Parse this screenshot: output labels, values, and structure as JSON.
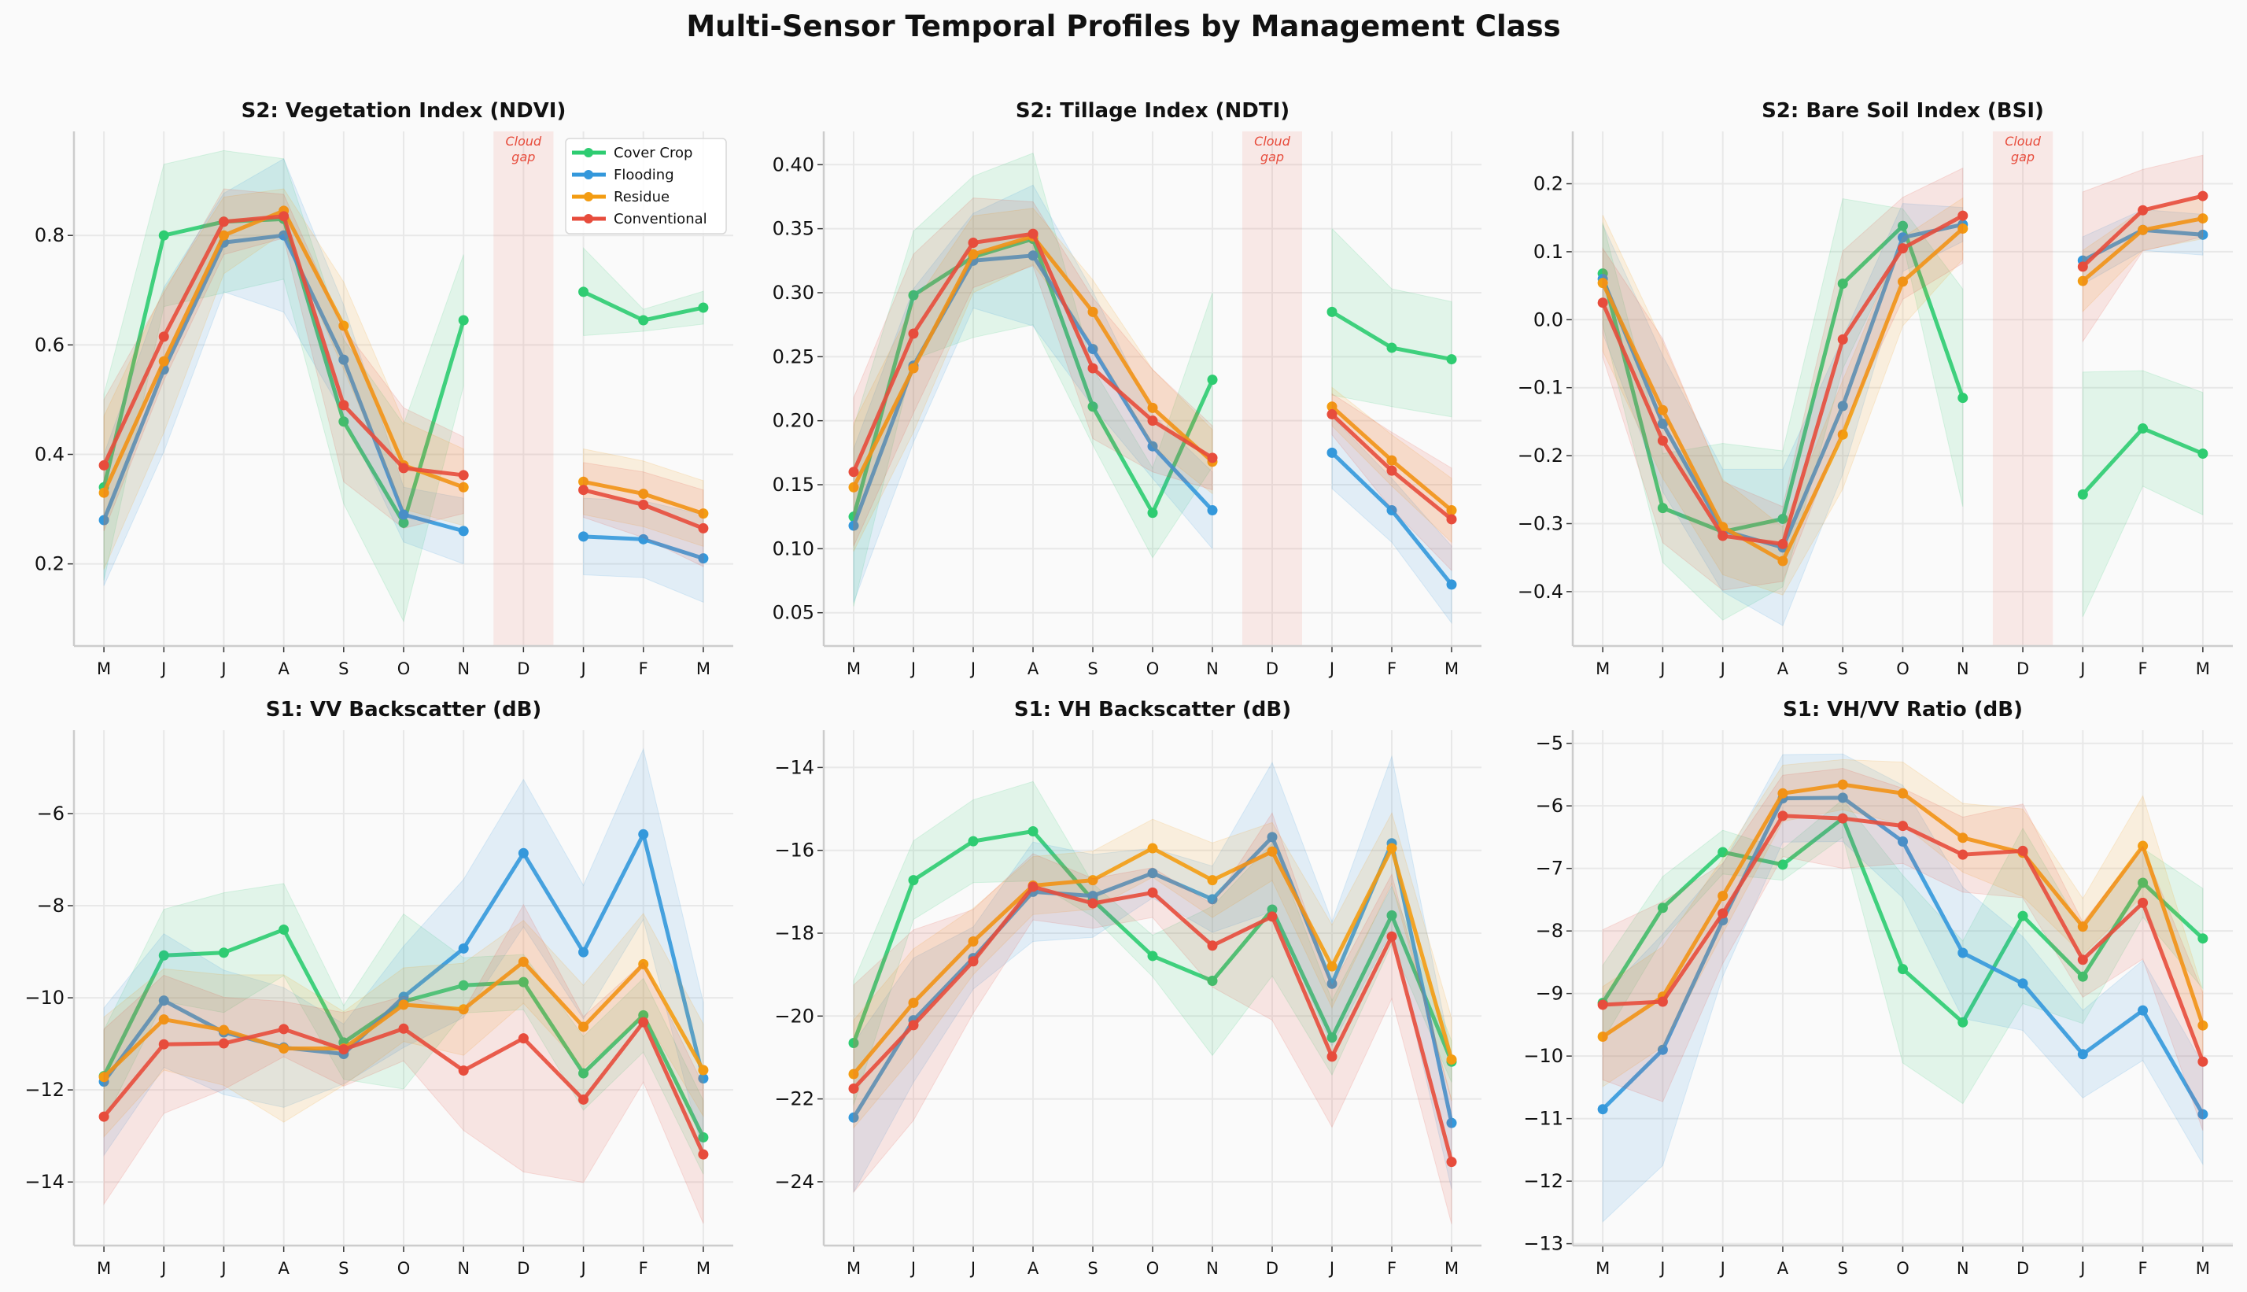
{
  "figure": {
    "title": "Multi-Sensor Temporal Profiles by Management Class",
    "background": "#fafafa",
    "gap_label": [
      "Cloud",
      "gap"
    ]
  },
  "legend": {
    "placement": "upper-right of first panel",
    "entries": [
      "Cover Crop",
      "Flooding",
      "Residue",
      "Conventional"
    ]
  },
  "chart_data": [
    {
      "type": "line",
      "title": "S2: Vegetation Index (NDVI)",
      "categories": [
        "M",
        "J",
        "J",
        "A",
        "S",
        "O",
        "N",
        "D",
        "J",
        "F",
        "M"
      ],
      "ylim": [
        0.05,
        0.99
      ],
      "grid": true,
      "cloud_gap": "D",
      "yticks": [
        0.2,
        0.4,
        0.6,
        0.8
      ],
      "ytick_labels": [
        "0.2",
        "0.4",
        "0.6",
        "0.8"
      ],
      "series": [
        {
          "name": "Cover Crop",
          "color": "#2ecc71",
          "values": [
            0.34,
            0.8,
            0.825,
            0.83,
            0.46,
            0.275,
            0.645,
            null,
            0.697,
            0.645,
            0.668
          ],
          "band": [
            0.17,
            0.13,
            0.13,
            0.11,
            0.15,
            0.18,
            0.12,
            null,
            0.08,
            0.02,
            0.03
          ]
        },
        {
          "name": "Flooding",
          "color": "#3498db",
          "values": [
            0.28,
            0.555,
            0.787,
            0.8,
            0.573,
            0.29,
            0.26,
            null,
            0.25,
            0.245,
            0.21
          ],
          "band": [
            0.12,
            0.15,
            0.09,
            0.14,
            0.1,
            0.05,
            0.06,
            null,
            0.07,
            0.07,
            0.08
          ]
        },
        {
          "name": "Residue",
          "color": "#f39c12",
          "values": [
            0.33,
            0.57,
            0.8,
            0.845,
            0.635,
            0.38,
            0.34,
            null,
            0.35,
            0.328,
            0.292
          ],
          "band": [
            0.14,
            0.13,
            0.07,
            0.04,
            0.08,
            0.08,
            0.07,
            null,
            0.06,
            0.06,
            0.06
          ]
        },
        {
          "name": "Conventional",
          "color": "#e74c3c",
          "values": [
            0.38,
            0.615,
            0.825,
            0.835,
            0.49,
            0.375,
            0.362,
            null,
            0.335,
            0.308,
            0.265
          ],
          "band": [
            0.12,
            0.08,
            0.06,
            0.04,
            0.14,
            0.11,
            0.07,
            null,
            0.05,
            0.06,
            0.07
          ]
        }
      ]
    },
    {
      "type": "line",
      "title": "S2: Tillage Index (NDTI)",
      "categories": [
        "M",
        "J",
        "J",
        "A",
        "S",
        "O",
        "N",
        "D",
        "J",
        "F",
        "M"
      ],
      "ylim": [
        0.024,
        0.426
      ],
      "grid": true,
      "cloud_gap": "D",
      "yticks": [
        0.05,
        0.1,
        0.15,
        0.2,
        0.25,
        0.3,
        0.35,
        0.4
      ],
      "ytick_labels": [
        "0.05",
        "0.10",
        "0.15",
        "0.20",
        "0.25",
        "0.30",
        "0.35",
        "0.40"
      ],
      "series": [
        {
          "name": "Cover Crop",
          "color": "#2ecc71",
          "values": [
            0.125,
            0.298,
            0.328,
            0.342,
            0.211,
            0.128,
            0.232,
            null,
            0.285,
            0.257,
            0.248
          ],
          "band": [
            0.07,
            0.05,
            0.063,
            0.067,
            0.03,
            0.035,
            0.068,
            null,
            0.065,
            0.046,
            0.045
          ]
        },
        {
          "name": "Flooding",
          "color": "#3498db",
          "values": [
            0.118,
            0.243,
            0.325,
            0.329,
            0.256,
            0.18,
            0.13,
            null,
            0.175,
            0.13,
            0.072
          ],
          "band": [
            0.06,
            0.06,
            0.037,
            0.055,
            0.045,
            0.025,
            0.03,
            null,
            0.028,
            0.025,
            0.03
          ]
        },
        {
          "name": "Residue",
          "color": "#f39c12",
          "values": [
            0.148,
            0.241,
            0.33,
            0.344,
            0.285,
            0.21,
            0.168,
            null,
            0.211,
            0.169,
            0.13
          ],
          "band": [
            0.05,
            0.05,
            0.03,
            0.022,
            0.025,
            0.03,
            0.025,
            null,
            0.015,
            0.02,
            0.025
          ]
        },
        {
          "name": "Conventional",
          "color": "#e74c3c",
          "values": [
            0.16,
            0.268,
            0.339,
            0.346,
            0.241,
            0.2,
            0.171,
            null,
            0.205,
            0.161,
            0.123
          ],
          "band": [
            0.058,
            0.062,
            0.035,
            0.025,
            0.055,
            0.04,
            0.025,
            null,
            0.016,
            0.03,
            0.04
          ]
        }
      ]
    },
    {
      "type": "line",
      "title": "S2: Bare Soil Index (BSI)",
      "categories": [
        "M",
        "J",
        "J",
        "A",
        "S",
        "O",
        "N",
        "D",
        "J",
        "F",
        "M"
      ],
      "ylim": [
        -0.48,
        0.277
      ],
      "grid": true,
      "cloud_gap": "D",
      "yticks": [
        -0.4,
        -0.3,
        -0.2,
        -0.1,
        0.0,
        0.1,
        0.2
      ],
      "ytick_labels": [
        "−0.4",
        "−0.3",
        "−0.2",
        "−0.1",
        "0.0",
        "0.1",
        "0.2"
      ],
      "series": [
        {
          "name": "Cover Crop",
          "color": "#2ecc71",
          "values": [
            0.068,
            -0.277,
            -0.312,
            -0.293,
            0.053,
            0.138,
            -0.115,
            null,
            -0.257,
            -0.16,
            -0.197
          ],
          "band": [
            0.075,
            0.08,
            0.13,
            0.1,
            0.125,
            0.025,
            0.16,
            null,
            0.18,
            0.085,
            0.09
          ]
        },
        {
          "name": "Flooding",
          "color": "#3498db",
          "values": [
            0.06,
            -0.153,
            -0.31,
            -0.335,
            -0.127,
            0.121,
            0.14,
            null,
            0.087,
            0.132,
            0.125
          ],
          "band": [
            0.08,
            0.1,
            0.09,
            0.115,
            0.1,
            0.05,
            0.025,
            null,
            0.035,
            0.03,
            0.03
          ]
        },
        {
          "name": "Residue",
          "color": "#f39c12",
          "values": [
            0.054,
            -0.133,
            -0.305,
            -0.355,
            -0.169,
            0.056,
            0.134,
            null,
            0.057,
            0.132,
            0.149
          ],
          "band": [
            0.1,
            0.1,
            0.07,
            0.05,
            0.08,
            0.065,
            0.045,
            null,
            0.045,
            0.03,
            0.03
          ]
        },
        {
          "name": "Conventional",
          "color": "#e74c3c",
          "values": [
            0.025,
            -0.178,
            -0.318,
            -0.33,
            -0.029,
            0.105,
            0.153,
            null,
            0.078,
            0.161,
            0.182
          ],
          "band": [
            0.08,
            0.15,
            0.08,
            0.055,
            0.13,
            0.075,
            0.07,
            null,
            0.11,
            0.06,
            0.06
          ]
        }
      ]
    },
    {
      "type": "line",
      "title": "S1: VV Backscatter (dB)",
      "categories": [
        "M",
        "J",
        "J",
        "A",
        "S",
        "O",
        "N",
        "D",
        "J",
        "F",
        "M"
      ],
      "ylim": [
        -15.38,
        -4.19
      ],
      "grid": true,
      "yticks": [
        -14,
        -12,
        -10,
        -8,
        -6
      ],
      "ytick_labels": [
        "−14",
        "−12",
        "−10",
        "−8",
        "−6"
      ],
      "series": [
        {
          "name": "Cover Crop",
          "color": "#2ecc71",
          "values": [
            -11.7,
            -9.08,
            -9.02,
            -8.52,
            -10.97,
            -10.08,
            -9.73,
            -9.66,
            -11.64,
            -10.38,
            -13.03
          ],
          "band": [
            1.0,
            1.0,
            1.3,
            1.0,
            0.8,
            1.9,
            0.6,
            0.6,
            0.8,
            0.8,
            0.8
          ]
        },
        {
          "name": "Flooding",
          "color": "#3498db",
          "values": [
            -11.82,
            -10.06,
            -10.75,
            -11.08,
            -11.22,
            -9.98,
            -8.93,
            -6.86,
            -9.01,
            -6.45,
            -11.75
          ],
          "band": [
            1.6,
            1.45,
            1.35,
            1.3,
            0.65,
            1.1,
            1.5,
            1.6,
            1.45,
            1.85,
            1.65
          ]
        },
        {
          "name": "Residue",
          "color": "#f39c12",
          "values": [
            -11.72,
            -10.47,
            -10.7,
            -11.1,
            -11.1,
            -10.15,
            -10.25,
            -9.22,
            -10.63,
            -9.27,
            -11.57
          ],
          "band": [
            1.3,
            1.1,
            1.2,
            1.6,
            0.8,
            0.8,
            1.0,
            0.9,
            0.9,
            1.1,
            1.0
          ]
        },
        {
          "name": "Conventional",
          "color": "#e74c3c",
          "values": [
            -12.58,
            -11.01,
            -10.99,
            -10.68,
            -11.12,
            -10.67,
            -11.58,
            -10.88,
            -12.21,
            -10.53,
            -13.4
          ],
          "band": [
            1.9,
            1.5,
            1.0,
            0.6,
            0.8,
            0.7,
            1.3,
            2.9,
            1.8,
            1.3,
            1.5
          ]
        }
      ]
    },
    {
      "type": "line",
      "title": "S1: VH Backscatter (dB)",
      "categories": [
        "M",
        "J",
        "J",
        "A",
        "S",
        "O",
        "N",
        "D",
        "J",
        "F",
        "M"
      ],
      "ylim": [
        -25.54,
        -13.1
      ],
      "grid": true,
      "yticks": [
        -24,
        -22,
        -20,
        -18,
        -16,
        -14
      ],
      "ytick_labels": [
        "−24",
        "−22",
        "−20",
        "−18",
        "−16",
        "−14"
      ],
      "series": [
        {
          "name": "Cover Crop",
          "color": "#2ecc71",
          "values": [
            -20.65,
            -16.72,
            -15.78,
            -15.54,
            -17.2,
            -18.55,
            -19.15,
            -17.43,
            -20.52,
            -17.57,
            -21.1
          ],
          "band": [
            1.5,
            0.95,
            1.0,
            1.2,
            0.4,
            0.5,
            1.8,
            1.6,
            0.9,
            0.7,
            0.5
          ]
        },
        {
          "name": "Flooding",
          "color": "#3498db",
          "values": [
            -22.45,
            -20.1,
            -18.6,
            -17.0,
            -17.1,
            -16.55,
            -17.18,
            -15.68,
            -19.22,
            -15.83,
            -22.58
          ],
          "band": [
            1.8,
            1.5,
            0.75,
            1.2,
            1.0,
            0.6,
            0.8,
            1.8,
            1.5,
            2.1,
            1.6
          ]
        },
        {
          "name": "Residue",
          "color": "#f39c12",
          "values": [
            -21.4,
            -19.68,
            -18.2,
            -16.85,
            -16.72,
            -15.95,
            -16.72,
            -16.03,
            -18.8,
            -15.95,
            -21.05
          ],
          "band": [
            1.3,
            1.3,
            0.8,
            0.7,
            0.7,
            0.7,
            0.9,
            0.7,
            1.0,
            0.85,
            1.0
          ]
        },
        {
          "name": "Conventional",
          "color": "#e74c3c",
          "values": [
            -21.75,
            -20.22,
            -18.68,
            -16.88,
            -17.28,
            -17.02,
            -18.3,
            -17.6,
            -20.98,
            -18.08,
            -23.52
          ],
          "band": [
            2.5,
            2.3,
            1.25,
            0.8,
            0.6,
            0.6,
            1.0,
            2.5,
            1.7,
            1.5,
            1.5
          ]
        }
      ]
    },
    {
      "type": "line",
      "title": "S1: VH/VV Ratio (dB)",
      "categories": [
        "M",
        "J",
        "J",
        "A",
        "S",
        "O",
        "N",
        "D",
        "J",
        "F",
        "M"
      ],
      "ylim": [
        -13.03,
        -4.79
      ],
      "grid": true,
      "yticks": [
        -13,
        -12,
        -11,
        -10,
        -9,
        -8,
        -7,
        -6,
        -5
      ],
      "ytick_labels": [
        "−13",
        "−12",
        "−11",
        "−10",
        "−9",
        "−8",
        "−7",
        "−6",
        "−5"
      ],
      "series": [
        {
          "name": "Cover Crop",
          "color": "#2ecc71",
          "values": [
            -9.15,
            -7.63,
            -6.74,
            -6.94,
            -6.2,
            -8.61,
            -9.46,
            -7.76,
            -8.73,
            -7.23,
            -8.12
          ],
          "band": [
            0.6,
            0.5,
            0.35,
            0.25,
            0.3,
            1.5,
            1.3,
            1.4,
            0.75,
            0.55,
            0.8
          ]
        },
        {
          "name": "Flooding",
          "color": "#3498db",
          "values": [
            -10.85,
            -9.9,
            -7.83,
            -5.88,
            -5.87,
            -6.57,
            -8.35,
            -8.84,
            -9.97,
            -9.27,
            -10.93
          ],
          "band": [
            1.8,
            1.85,
            0.9,
            0.7,
            0.7,
            0.9,
            1.05,
            0.75,
            0.7,
            0.8,
            0.8
          ]
        },
        {
          "name": "Residue",
          "color": "#f39c12",
          "values": [
            -9.69,
            -9.05,
            -7.44,
            -5.8,
            -5.66,
            -5.8,
            -6.51,
            -6.75,
            -7.93,
            -6.64,
            -9.51
          ],
          "band": [
            0.8,
            0.8,
            0.6,
            0.45,
            0.4,
            0.5,
            0.55,
            0.7,
            0.45,
            0.8,
            0.55
          ]
        },
        {
          "name": "Conventional",
          "color": "#e74c3c",
          "values": [
            -9.18,
            -9.13,
            -7.72,
            -6.16,
            -6.2,
            -6.32,
            -6.78,
            -6.72,
            -8.46,
            -7.55,
            -10.09
          ],
          "band": [
            1.2,
            1.6,
            0.8,
            0.65,
            0.8,
            0.6,
            0.6,
            0.75,
            0.6,
            0.9,
            1.1
          ]
        }
      ]
    }
  ]
}
